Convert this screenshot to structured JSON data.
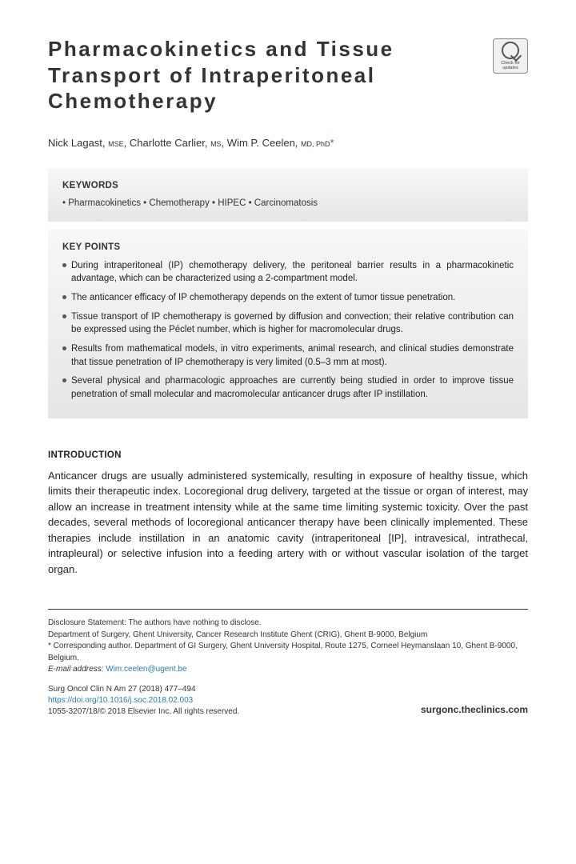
{
  "title": "Pharmacokinetics and Tissue Transport of Intraperitoneal Chemotherapy",
  "checkUpdates": "Check for updates",
  "authors": {
    "a1_name": "Nick Lagast, ",
    "a1_deg": "MSE",
    "sep1": ", ",
    "a2_name": "Charlotte Carlier, ",
    "a2_deg": "MS",
    "sep2": ", ",
    "a3_name": "Wim P. Ceelen, ",
    "a3_deg": "MD, PhD",
    "corr": "*"
  },
  "keywords": {
    "head": "KEYWORDS",
    "line": "• Pharmacokinetics • Chemotherapy • HIPEC • Carcinomatosis"
  },
  "keypoints": {
    "head": "KEY POINTS",
    "p1": "During intraperitoneal (IP) chemotherapy delivery, the peritoneal barrier results in a pharmacokinetic advantage, which can be characterized using a 2-compartment model.",
    "p2": "The anticancer efficacy of IP chemotherapy depends on the extent of tumor tissue penetration.",
    "p3": "Tissue transport of IP chemotherapy is governed by diffusion and convection; their relative contribution can be expressed using the Péclet number, which is higher for macromolecular drugs.",
    "p4": "Results from mathematical models, in vitro experiments, animal research, and clinical studies demonstrate that tissue penetration of IP chemotherapy is very limited (0.5–3 mm at most).",
    "p5": "Several physical and pharmacologic approaches are currently being studied in order to improve tissue penetration of small molecular and macromolecular anticancer drugs after IP instillation."
  },
  "intro": {
    "head": "INTRODUCTION",
    "text": "Anticancer drugs are usually administered systemically, resulting in exposure of healthy tissue, which limits their therapeutic index. Locoregional drug delivery, targeted at the tissue or organ of interest, may allow an increase in treatment intensity while at the same time limiting systemic toxicity. Over the past decades, several methods of locoregional anticancer therapy have been clinically implemented. These therapies include instillation in an anatomic cavity (intraperitoneal [IP], intravesical, intrathecal, intrapleural) or selective infusion into a feeding artery with or without vascular isolation of the target organ."
  },
  "footer": {
    "disclosure": "Disclosure Statement: The authors have nothing to disclose.",
    "dept": "Department of Surgery, Ghent University, Cancer Research Institute Ghent (CRIG), Ghent B-9000, Belgium",
    "corr": "* Corresponding author. Department of GI Surgery, Ghent University Hospital, Route 1275, Corneel Heymanslaan 10, Ghent B-9000, Belgium.",
    "emailLabel": "E-mail address: ",
    "email": "Wim.ceelen@ugent.be",
    "journal": "Surg Oncol Clin N Am 27 (2018) 477–494",
    "doi": "https://doi.org/10.1016/j.soc.2018.02.003",
    "copyright": "1055-3207/18/© 2018 Elsevier Inc. All rights reserved.",
    "site": "surgonc.theclinics.com"
  }
}
